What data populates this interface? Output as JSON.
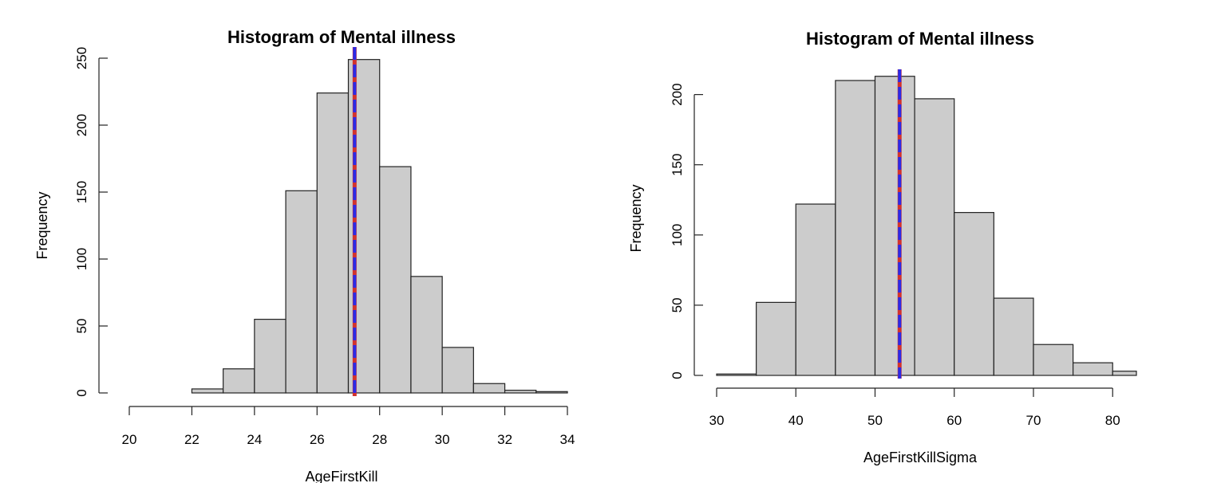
{
  "chart_data": [
    {
      "type": "histogram",
      "title": "Histogram of Mental illness",
      "xlabel": "AgeFirstKill",
      "ylabel": "Frequency",
      "xlim": [
        20,
        34
      ],
      "ylim": [
        0,
        250
      ],
      "x_ticks": [
        "20",
        "22",
        "24",
        "26",
        "28",
        "30",
        "32",
        "34"
      ],
      "y_ticks": [
        "0",
        "50",
        "100",
        "150",
        "200",
        "250"
      ],
      "bins": [
        {
          "from": 22,
          "to": 23,
          "count": 3
        },
        {
          "from": 23,
          "to": 24,
          "count": 18
        },
        {
          "from": 24,
          "to": 25,
          "count": 55
        },
        {
          "from": 25,
          "to": 26,
          "count": 151
        },
        {
          "from": 26,
          "to": 27,
          "count": 224
        },
        {
          "from": 27,
          "to": 28,
          "count": 249
        },
        {
          "from": 28,
          "to": 29,
          "count": 169
        },
        {
          "from": 29,
          "to": 30,
          "count": 87
        },
        {
          "from": 30,
          "to": 31,
          "count": 34
        },
        {
          "from": 31,
          "to": 32,
          "count": 7
        },
        {
          "from": 32,
          "to": 33,
          "count": 2
        },
        {
          "from": 33,
          "to": 34,
          "count": 1
        }
      ],
      "vlines": [
        {
          "x": 27.2,
          "color": "#d2322d",
          "style": "solid"
        },
        {
          "x": 27.2,
          "color": "#2a2ae8",
          "style": "dashed"
        }
      ],
      "bar_color": "#cccccc",
      "grid": false,
      "legend": "none"
    },
    {
      "type": "histogram",
      "title": "Histogram of Mental illness",
      "xlabel": "AgeFirstKillSigma",
      "ylabel": "Frequency",
      "xlim": [
        30,
        83
      ],
      "ylim": [
        0,
        210
      ],
      "x_ticks": [
        "30",
        "40",
        "50",
        "60",
        "70",
        "80"
      ],
      "y_ticks": [
        "0",
        "50",
        "100",
        "150",
        "200"
      ],
      "bins": [
        {
          "from": 30,
          "to": 35,
          "count": 1
        },
        {
          "from": 35,
          "to": 40,
          "count": 52
        },
        {
          "from": 40,
          "to": 45,
          "count": 122
        },
        {
          "from": 45,
          "to": 50,
          "count": 210
        },
        {
          "from": 50,
          "to": 55,
          "count": 213
        },
        {
          "from": 55,
          "to": 60,
          "count": 197
        },
        {
          "from": 60,
          "to": 65,
          "count": 116
        },
        {
          "from": 65,
          "to": 70,
          "count": 55
        },
        {
          "from": 70,
          "to": 75,
          "count": 22
        },
        {
          "from": 75,
          "to": 80,
          "count": 9
        },
        {
          "from": 80,
          "to": 85,
          "count": 3
        }
      ],
      "vlines": [
        {
          "x": 53.1,
          "color": "#d2322d",
          "style": "solid"
        },
        {
          "x": 53.1,
          "color": "#2a2ae8",
          "style": "dashed"
        }
      ],
      "bar_color": "#cccccc",
      "grid": false,
      "legend": "none"
    }
  ]
}
